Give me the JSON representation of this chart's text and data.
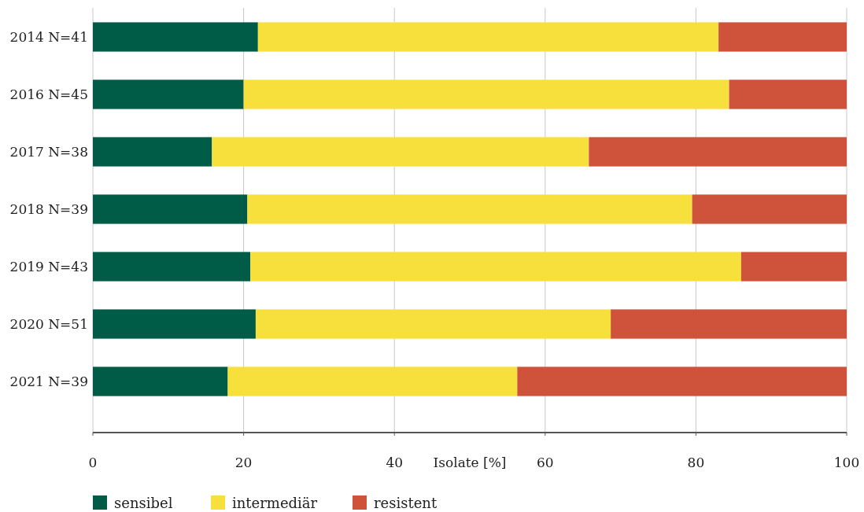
{
  "chart_data": {
    "type": "bar",
    "orientation": "horizontal",
    "stacked": true,
    "xlabel": "Isolate [%]",
    "categories": [
      "2014 N=41",
      "2016 N=45",
      "2017 N=38",
      "2018 N=39",
      "2019 N=43",
      "2020 N=51",
      "2021 N=39"
    ],
    "series": [
      {
        "name": "sensibel",
        "color": "#005c46",
        "values": [
          21.9,
          20.0,
          15.8,
          20.5,
          20.9,
          21.6,
          17.9
        ]
      },
      {
        "name": "intermediär",
        "color": "#f7df3c",
        "values": [
          61.1,
          64.4,
          50.0,
          59.0,
          65.1,
          47.1,
          38.4
        ]
      },
      {
        "name": "resistent",
        "color": "#cf523a",
        "values": [
          17.0,
          15.6,
          34.2,
          20.5,
          14.0,
          31.3,
          43.7
        ]
      }
    ],
    "xlim": [
      0,
      100
    ],
    "xticks": [
      0,
      20,
      40,
      60,
      80,
      100
    ],
    "grid": "x",
    "legend": "bottom left"
  }
}
